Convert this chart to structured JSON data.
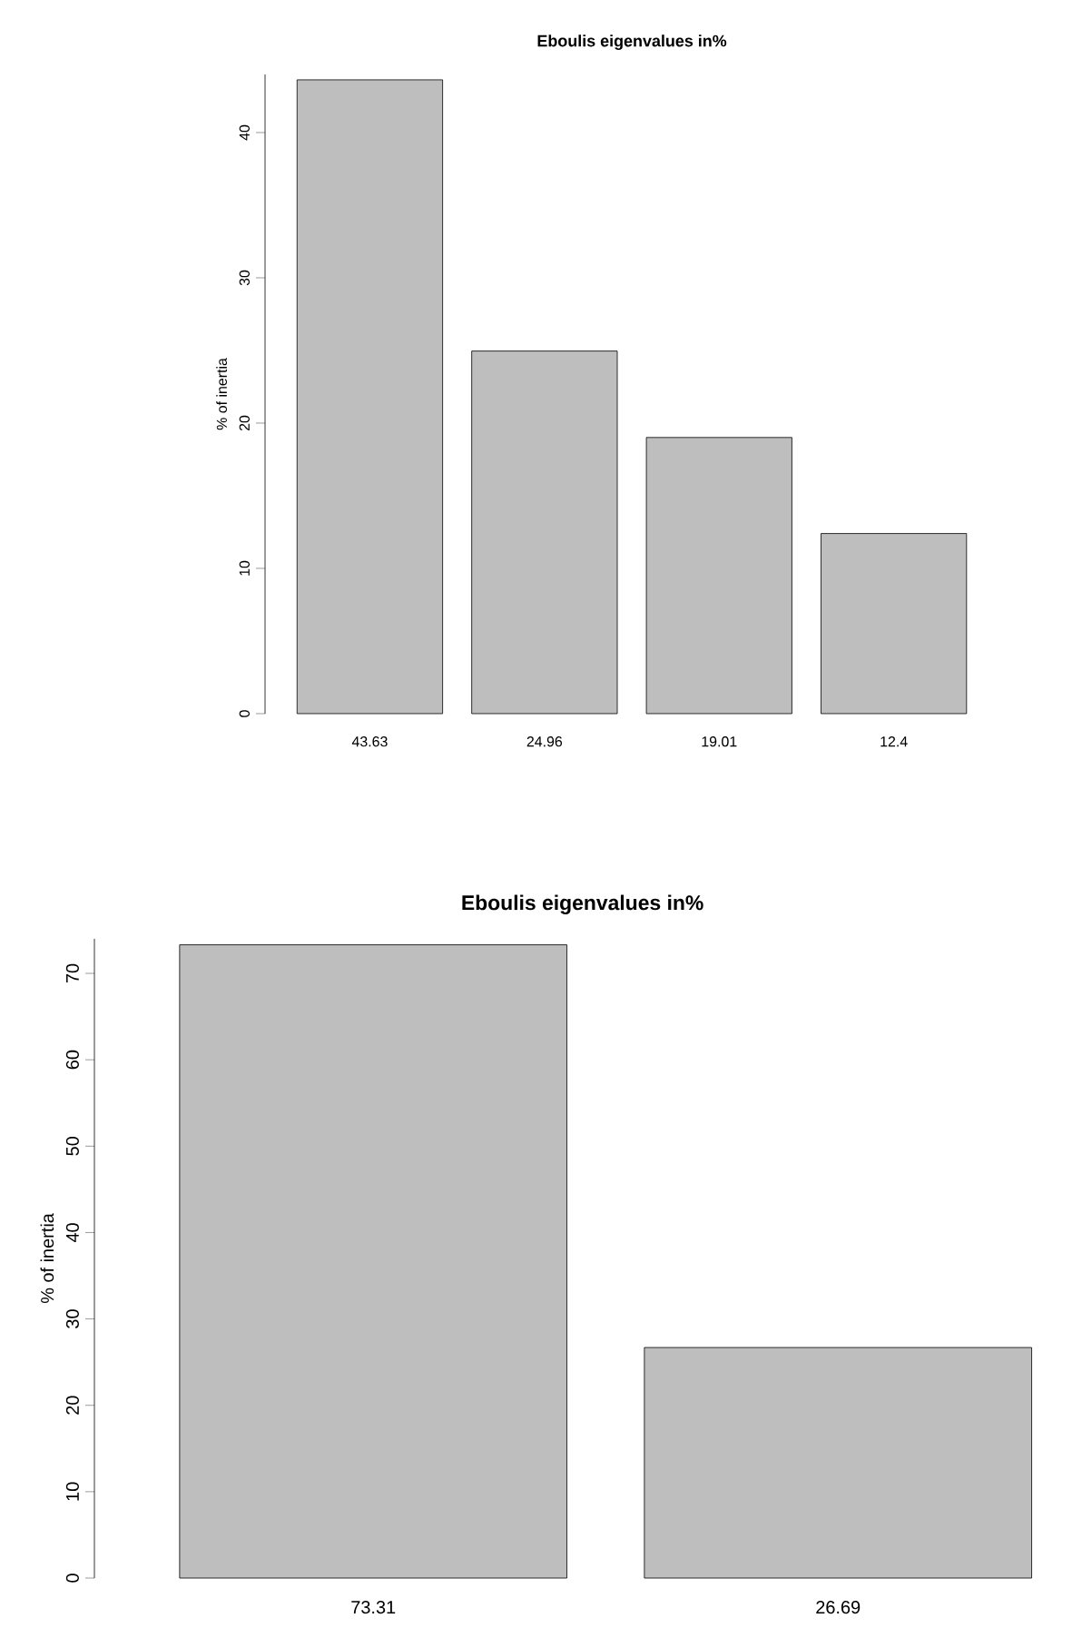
{
  "chart_data": [
    {
      "type": "bar",
      "title": "Eboulis eigenvalues in%",
      "ylabel": "% of inertia",
      "categories": [
        "43.63",
        "24.96",
        "19.01",
        "12.4"
      ],
      "values": [
        43.63,
        24.96,
        19.01,
        12.4
      ],
      "color": "#bebebe",
      "ylim": [
        0,
        44
      ],
      "yticks": [
        0,
        10,
        20,
        30,
        40
      ]
    },
    {
      "type": "bar",
      "title": "Eboulis eigenvalues in%",
      "ylabel": "% of inertia",
      "categories": [
        "73.31",
        "26.69"
      ],
      "values": [
        73.31,
        26.69
      ],
      "color": "#bebebe",
      "ylim": [
        0,
        74
      ],
      "yticks": [
        0,
        10,
        20,
        30,
        40,
        50,
        60,
        70
      ]
    }
  ]
}
